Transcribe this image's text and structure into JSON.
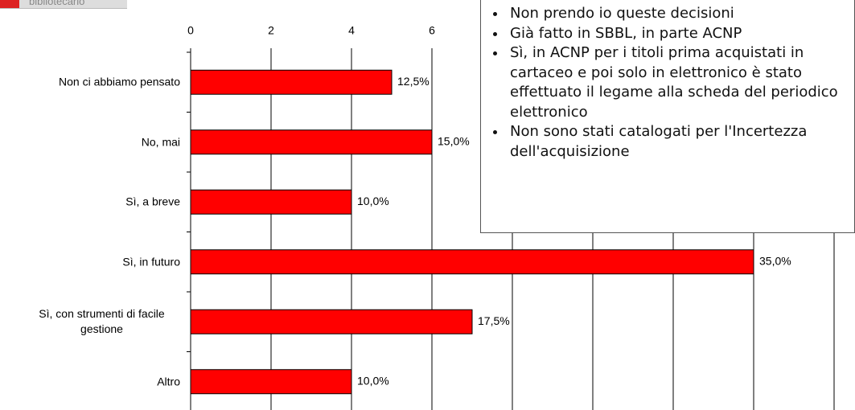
{
  "logo_text": "bibliotecario",
  "chart_data": {
    "type": "hbar",
    "categories": [
      "Non ci abbiamo pensato",
      "No, mai",
      "Sì, a breve",
      "Sì, in futuro",
      "Sì, con strumenti di facile gestione",
      "Altro"
    ],
    "values": [
      5,
      6,
      4,
      14,
      7,
      4
    ],
    "bar_labels": [
      "12,5%",
      "15,0%",
      "10,0%",
      "35,0%",
      "17,5%",
      "10,0%"
    ],
    "color": "#ff0000",
    "xlim": [
      0,
      16
    ],
    "xticks": [
      0,
      2,
      4,
      6,
      8,
      10,
      12,
      14,
      16
    ],
    "grid": true
  },
  "note": {
    "bullets": [
      "Non prendo io queste decisioni",
      "Già fatto in SBBL, in parte ACNP",
      "Sì, in ACNP per i titoli  prima acquistati in cartaceo e poi solo in elettronico è stato effettuato il legame alla scheda del periodico elettronico",
      "Non sono stati catalogati per l'Incertezza dell'acquisizione"
    ]
  }
}
